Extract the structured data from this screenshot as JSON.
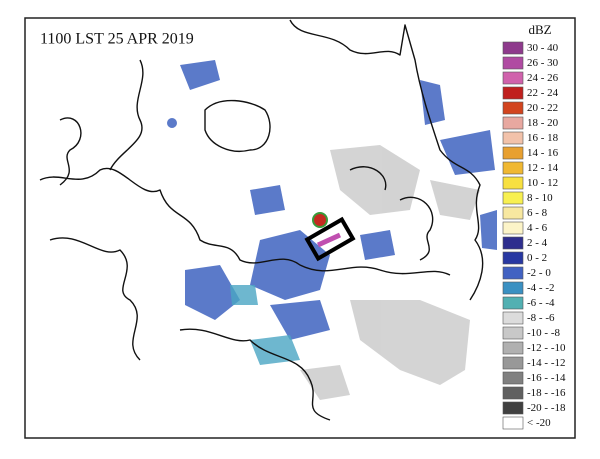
{
  "title": "1100 LST 25 APR 2019",
  "legend": {
    "title": "dBZ",
    "items": [
      {
        "label": "30 - 40",
        "color": "#8e3a8c"
      },
      {
        "label": "26 - 30",
        "color": "#b04ba2"
      },
      {
        "label": "24 - 26",
        "color": "#d062ac"
      },
      {
        "label": "22 - 24",
        "color": "#c0201e"
      },
      {
        "label": "20 - 22",
        "color": "#d2441e"
      },
      {
        "label": "18 - 20",
        "color": "#e8a8a0"
      },
      {
        "label": "16 - 18",
        "color": "#f2c2aa"
      },
      {
        "label": "14 - 16",
        "color": "#e8a030"
      },
      {
        "label": "12 - 14",
        "color": "#f0b832"
      },
      {
        "label": "10 - 12",
        "color": "#f8e040"
      },
      {
        "label": "8 - 10",
        "color": "#f8f050"
      },
      {
        "label": "6 - 8",
        "color": "#f8e8a0"
      },
      {
        "label": "4 - 6",
        "color": "#fcf4c8"
      },
      {
        "label": "2 - 4",
        "color": "#2e2e8e"
      },
      {
        "label": "0 - 2",
        "color": "#2838a2"
      },
      {
        "label": "-2 - 0",
        "color": "#4262c2"
      },
      {
        "label": "-4 - -2",
        "color": "#3a90c2"
      },
      {
        "label": "-6 - -4",
        "color": "#52b0b2"
      },
      {
        "label": "-8 - -6",
        "color": "#dcdcdc"
      },
      {
        "label": "-10 - -8",
        "color": "#c8c8c8"
      },
      {
        "label": "-12 - -10",
        "color": "#b0b0b0"
      },
      {
        "label": "-14 - -12",
        "color": "#989898"
      },
      {
        "label": "-16 - -14",
        "color": "#808080"
      },
      {
        "label": "-18 - -16",
        "color": "#606060"
      },
      {
        "label": "-20 - -18",
        "color": "#404040"
      },
      {
        "label": "< -20",
        "color": "#ffffff"
      }
    ]
  }
}
